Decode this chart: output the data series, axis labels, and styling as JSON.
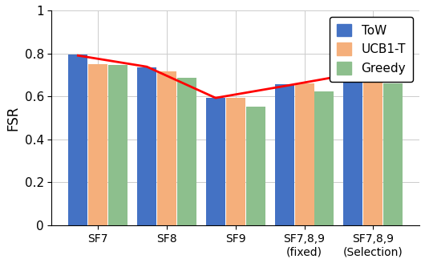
{
  "categories": [
    "SF7",
    "SF8",
    "SF9",
    "SF7,8,9\n(fixed)",
    "SF7,8,9\n(Selection)"
  ],
  "tow": [
    0.795,
    0.735,
    0.595,
    0.655,
    0.71
  ],
  "ucb1t": [
    0.75,
    0.715,
    0.592,
    0.66,
    0.68
  ],
  "greedy": [
    0.745,
    0.685,
    0.553,
    0.625,
    0.66
  ],
  "red_line": [
    0.79,
    0.738,
    0.593,
    0.648,
    0.705
  ],
  "bar_colors": [
    "#4472c4",
    "#f5af7b",
    "#8dbf8d"
  ],
  "ylabel": "FSR",
  "ylim": [
    0,
    1.0
  ],
  "yticks": [
    0,
    0.2,
    0.4,
    0.6,
    0.8,
    1
  ],
  "ytick_labels": [
    "0",
    "0.2",
    "0.4",
    "0.6",
    "0.8",
    "1"
  ],
  "legend_labels": [
    "ToW",
    "UCB1-T",
    "Greedy"
  ],
  "background_color": "#ffffff",
  "grid_color": "#cccccc"
}
